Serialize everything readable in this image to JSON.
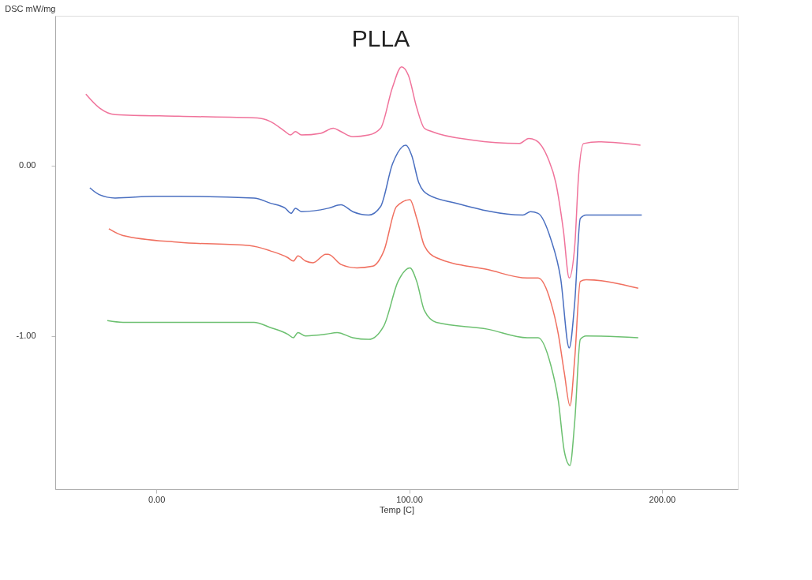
{
  "chart_data": {
    "type": "line",
    "title": "PLLA",
    "xlabel": "Temp  [C]",
    "ylabel": "DSC mW/mg",
    "xlim": [
      -40,
      230
    ],
    "ylim": [
      -1.9,
      0.88
    ],
    "xticks": [
      {
        "value": 0,
        "label": "0.00"
      },
      {
        "value": 100,
        "label": "100.00"
      },
      {
        "value": 200,
        "label": "200.00"
      }
    ],
    "yticks": [
      {
        "value": -1,
        "label": "-1.00"
      },
      {
        "value": 0,
        "label": "0.00"
      }
    ],
    "grid": false,
    "legend": false,
    "marker": "none",
    "line_style": "solid",
    "series": [
      {
        "color": "#f0739b",
        "x": [
          -27.9,
          -22.6,
          -16.3,
          8.8,
          40,
          45,
          51,
          53,
          55,
          57.4,
          65,
          70,
          73,
          77.7,
          84,
          88.7,
          93.4,
          97,
          99.7,
          103,
          106,
          109,
          125,
          143.6,
          147.3,
          150,
          155,
          158,
          161,
          163.3,
          165.5,
          167,
          169,
          175,
          191.5
        ],
        "values": [
          0.42,
          0.34,
          0.3,
          0.29,
          0.28,
          0.26,
          0.2,
          0.18,
          0.2,
          0.18,
          0.19,
          0.22,
          0.2,
          0.17,
          0.18,
          0.22,
          0.46,
          0.58,
          0.53,
          0.34,
          0.22,
          0.2,
          0.15,
          0.13,
          0.16,
          0.15,
          0.04,
          -0.1,
          -0.38,
          -0.66,
          -0.47,
          -0.06,
          0.13,
          0.14,
          0.12
        ]
      },
      {
        "color": "#4a6fc0",
        "x": [
          -26.3,
          -22.6,
          -16.3,
          -0.6,
          8.8,
          38.6,
          45,
          51,
          53.3,
          55,
          57.4,
          68,
          73,
          77.7,
          84,
          88.7,
          93.4,
          98.7,
          101,
          103.8,
          107.5,
          118.5,
          145,
          148,
          151,
          156,
          159.9,
          163.3,
          165.5,
          167.7,
          170,
          192
        ],
        "values": [
          -0.13,
          -0.17,
          -0.19,
          -0.18,
          -0.18,
          -0.19,
          -0.22,
          -0.25,
          -0.28,
          -0.25,
          -0.27,
          -0.25,
          -0.23,
          -0.27,
          -0.29,
          -0.24,
          0.01,
          0.12,
          0.06,
          -0.1,
          -0.17,
          -0.22,
          -0.29,
          -0.27,
          -0.28,
          -0.43,
          -0.66,
          -1.07,
          -0.8,
          -0.31,
          -0.29,
          -0.29
        ]
      },
      {
        "color": "#f07060",
        "x": [
          -18.8,
          -13.2,
          8.8,
          37,
          45,
          52,
          54.2,
          56,
          59,
          62,
          67,
          68,
          73,
          79.3,
          85.6,
          90,
          95,
          100.3,
          103,
          106,
          110.7,
          131,
          146.7,
          151,
          156,
          159,
          161.4,
          163.6,
          165.5,
          167.7,
          170,
          190.6
        ],
        "values": [
          -0.37,
          -0.41,
          -0.45,
          -0.47,
          -0.5,
          -0.54,
          -0.56,
          -0.53,
          -0.56,
          -0.57,
          -0.52,
          -0.52,
          -0.58,
          -0.6,
          -0.59,
          -0.5,
          -0.24,
          -0.2,
          -0.31,
          -0.47,
          -0.54,
          -0.61,
          -0.66,
          -0.66,
          -0.8,
          -0.99,
          -1.22,
          -1.41,
          -1.13,
          -0.68,
          -0.67,
          -0.72
        ]
      },
      {
        "color": "#6cc070",
        "x": [
          -19.4,
          -13.2,
          8.8,
          38.6,
          45,
          52,
          54.2,
          56,
          59,
          67,
          71.5,
          77.7,
          84,
          90,
          95.6,
          100.3,
          103,
          106,
          110.7,
          131,
          146.7,
          151,
          156,
          159,
          161.4,
          163.6,
          165.5,
          167.7,
          170,
          190.6
        ],
        "values": [
          -0.91,
          -0.92,
          -0.92,
          -0.92,
          -0.95,
          -0.99,
          -1.01,
          -0.98,
          -1.0,
          -0.99,
          -0.98,
          -1.01,
          -1.02,
          -0.94,
          -0.68,
          -0.6,
          -0.68,
          -0.85,
          -0.92,
          -0.96,
          -1.01,
          -1.01,
          -1.17,
          -1.38,
          -1.68,
          -1.76,
          -1.5,
          -1.02,
          -1.0,
          -1.01
        ]
      }
    ]
  }
}
